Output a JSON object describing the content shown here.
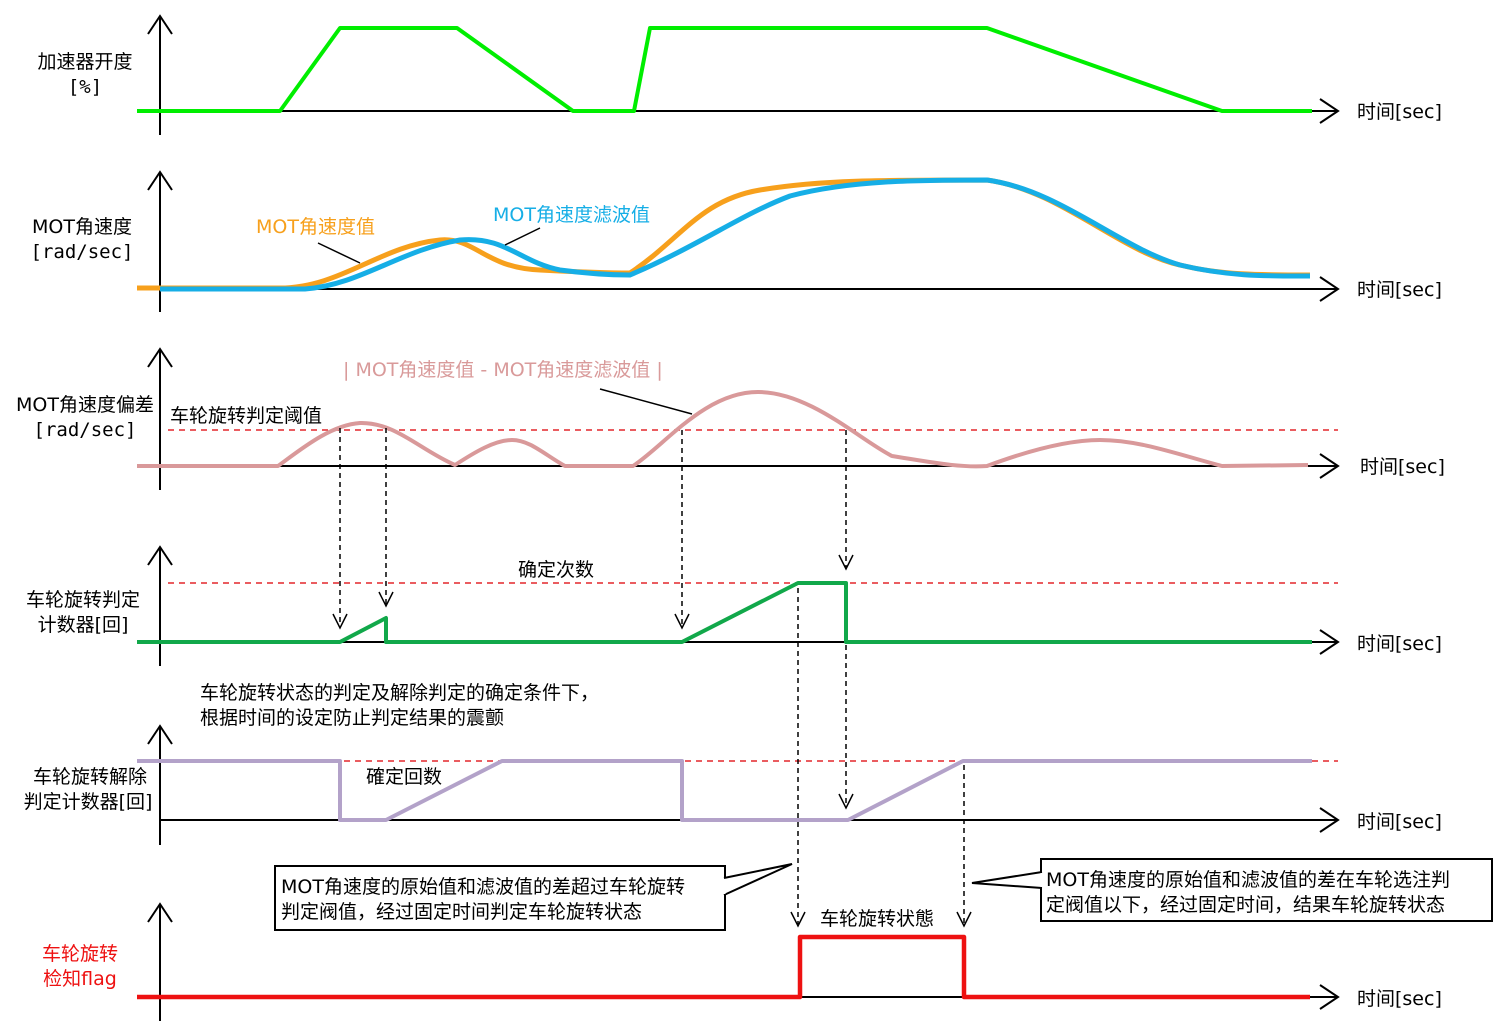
{
  "time_label": "时间[sec]",
  "panels": {
    "accelerator": {
      "label_line1": "加速器开度",
      "label_line2": "[%]"
    },
    "mot_speed": {
      "label_line1": "MOT角速度",
      "label_line2": "[rad/sec]",
      "raw_label": "MOT角速度值",
      "filtered_label": "MOT角速度滤波值"
    },
    "deviation": {
      "label_line1": "MOT角速度偏差",
      "label_line2": "[rad/sec]",
      "formula_label": "| MOT角速度值 - MOT角速度滤波值 |",
      "threshold_label": "车轮旋转判定阈值"
    },
    "judge_counter": {
      "label_line1": "车轮旋转判定",
      "label_line2": "计数器[回]",
      "count_label": "确定次数"
    },
    "release_counter": {
      "label_line1": "车轮旋转解除",
      "label_line2": "判定计数器[回]",
      "count_label": "確定回数"
    },
    "detect_flag": {
      "label_line1": "车轮旋转",
      "label_line2": "检知flag",
      "state_label": "车轮旋转状態"
    }
  },
  "notes": {
    "debounce_line1": "车轮旋转状态的判定及解除判定的确定条件下，",
    "debounce_line2": "根据时间的设定防止判定结果的震颤",
    "callout_left_line1": "MOT角速度的原始值和滤波值的差超过车轮旋转",
    "callout_left_line2": "判定阀值，经过固定时间判定车轮旋转状态",
    "callout_right_line1": "MOT角速度的原始值和滤波值的差在车轮选注判",
    "callout_right_line2": "定阀值以下，经过固定时间，结果车轮旋转状态"
  },
  "colors": {
    "accelerator": "#00ee00",
    "raw": "#f7a01c",
    "filtered": "#16aee6",
    "deviation": "#d9999a",
    "deviation_text": "#d99a9a",
    "judge_counter": "#11a84a",
    "release_counter": "#b3a2c9",
    "flag": "#ee1111",
    "threshold": "#e3262b"
  }
}
